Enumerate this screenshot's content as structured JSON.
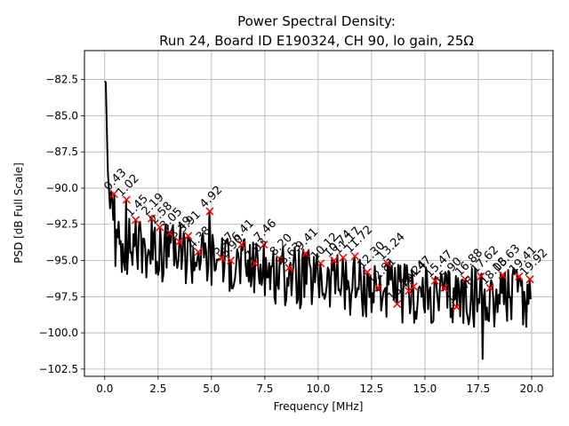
{
  "chart_data": {
    "type": "line",
    "title": "Power Spectral Density:",
    "subtitle": "Run 24, Board ID E190324, CH 90, lo gain, 25Ω",
    "xlabel": "Frequency [MHz]",
    "ylabel": "PSD [dB Full Scale]",
    "xlim": [
      -0.95,
      21.0
    ],
    "ylim": [
      -103.0,
      -80.5
    ],
    "grid": true,
    "x_ticks": [
      0.0,
      2.5,
      5.0,
      7.5,
      10.0,
      12.5,
      15.0,
      17.5,
      20.0
    ],
    "x_tick_labels": [
      "0.0",
      "2.5",
      "5.0",
      "7.5",
      "10.0",
      "12.5",
      "15.0",
      "17.5",
      "20.0"
    ],
    "y_ticks": [
      -82.5,
      -85.0,
      -87.5,
      -90.0,
      -92.5,
      -95.0,
      -97.5,
      -100.0,
      -102.5
    ],
    "y_tick_labels": [
      "−82.5",
      "−85.0",
      "−87.5",
      "−90.0",
      "−92.5",
      "−95.0",
      "−97.5",
      "−100.0",
      "−102.5"
    ],
    "series": [
      {
        "name": "PSD",
        "color": "#000000",
        "x_start": 0.0,
        "x_step": 0.05,
        "values_note": "noisy spectrum; start value and peak envelope below",
        "start_values": [
          -82.6,
          -82.7,
          -86.0,
          -89.0,
          -90.1,
          -91.4,
          -90.2,
          -90.8,
          -92.2,
          -90.4
        ],
        "floor_trend": [
          [
            1.0,
            -94.0
          ],
          [
            5.0,
            -95.0
          ],
          [
            10.0,
            -96.5
          ],
          [
            15.0,
            -97.5
          ],
          [
            20.0,
            -97.5
          ]
        ],
        "min_dip": {
          "x": 17.7,
          "y": -101.8
        }
      }
    ],
    "peaks": [
      {
        "label": "0.43",
        "x": 0.43,
        "y": -90.4
      },
      {
        "label": "1.02",
        "x": 1.02,
        "y": -90.8
      },
      {
        "label": "1.45",
        "x": 1.45,
        "y": -92.2
      },
      {
        "label": "2.19",
        "x": 2.19,
        "y": -92.1
      },
      {
        "label": "2.58",
        "x": 2.58,
        "y": -92.7
      },
      {
        "label": "3.05",
        "x": 3.05,
        "y": -93.1
      },
      {
        "label": "3.49",
        "x": 3.49,
        "y": -93.7
      },
      {
        "label": "3.91",
        "x": 3.91,
        "y": -93.3
      },
      {
        "label": "4.38",
        "x": 4.38,
        "y": -94.4
      },
      {
        "label": "4.92",
        "x": 4.92,
        "y": -91.6
      },
      {
        "label": "5.47",
        "x": 5.47,
        "y": -94.8
      },
      {
        "label": "5.90",
        "x": 5.9,
        "y": -95.0
      },
      {
        "label": "6.41",
        "x": 6.41,
        "y": -93.9
      },
      {
        "label": "7.03",
        "x": 7.03,
        "y": -95.2
      },
      {
        "label": "7.46",
        "x": 7.46,
        "y": -93.9
      },
      {
        "label": "8.20",
        "x": 8.2,
        "y": -94.9
      },
      {
        "label": "8.63",
        "x": 8.63,
        "y": -95.5
      },
      {
        "label": "9.41",
        "x": 9.41,
        "y": -94.5
      },
      {
        "label": "10.12",
        "x": 10.12,
        "y": -95.2
      },
      {
        "label": "10.74",
        "x": 10.74,
        "y": -95.0
      },
      {
        "label": "11.17",
        "x": 11.17,
        "y": -94.8
      },
      {
        "label": "11.72",
        "x": 11.72,
        "y": -94.7
      },
      {
        "label": "12.30",
        "x": 12.3,
        "y": -95.8
      },
      {
        "label": "12.81",
        "x": 12.81,
        "y": -96.9
      },
      {
        "label": "13.24",
        "x": 13.24,
        "y": -95.2
      },
      {
        "label": "13.70",
        "x": 13.7,
        "y": -98.0
      },
      {
        "label": "14.24",
        "x": 14.24,
        "y": -97.1
      },
      {
        "label": "14.47",
        "x": 14.47,
        "y": -96.8
      },
      {
        "label": "15.47",
        "x": 15.47,
        "y": -96.4
      },
      {
        "label": "15.90",
        "x": 15.9,
        "y": -96.9
      },
      {
        "label": "16.48",
        "x": 16.48,
        "y": -98.2
      },
      {
        "label": "16.88",
        "x": 16.88,
        "y": -96.3
      },
      {
        "label": "17.62",
        "x": 17.62,
        "y": -96.1
      },
      {
        "label": "18.05",
        "x": 18.05,
        "y": -96.9
      },
      {
        "label": "18.63",
        "x": 18.63,
        "y": -96.0
      },
      {
        "label": "19.41",
        "x": 19.41,
        "y": -96.1
      },
      {
        "label": "19.92",
        "x": 19.92,
        "y": -96.3
      }
    ],
    "marker_color": "#ff0000",
    "grid_color": "#b0b0b0"
  }
}
